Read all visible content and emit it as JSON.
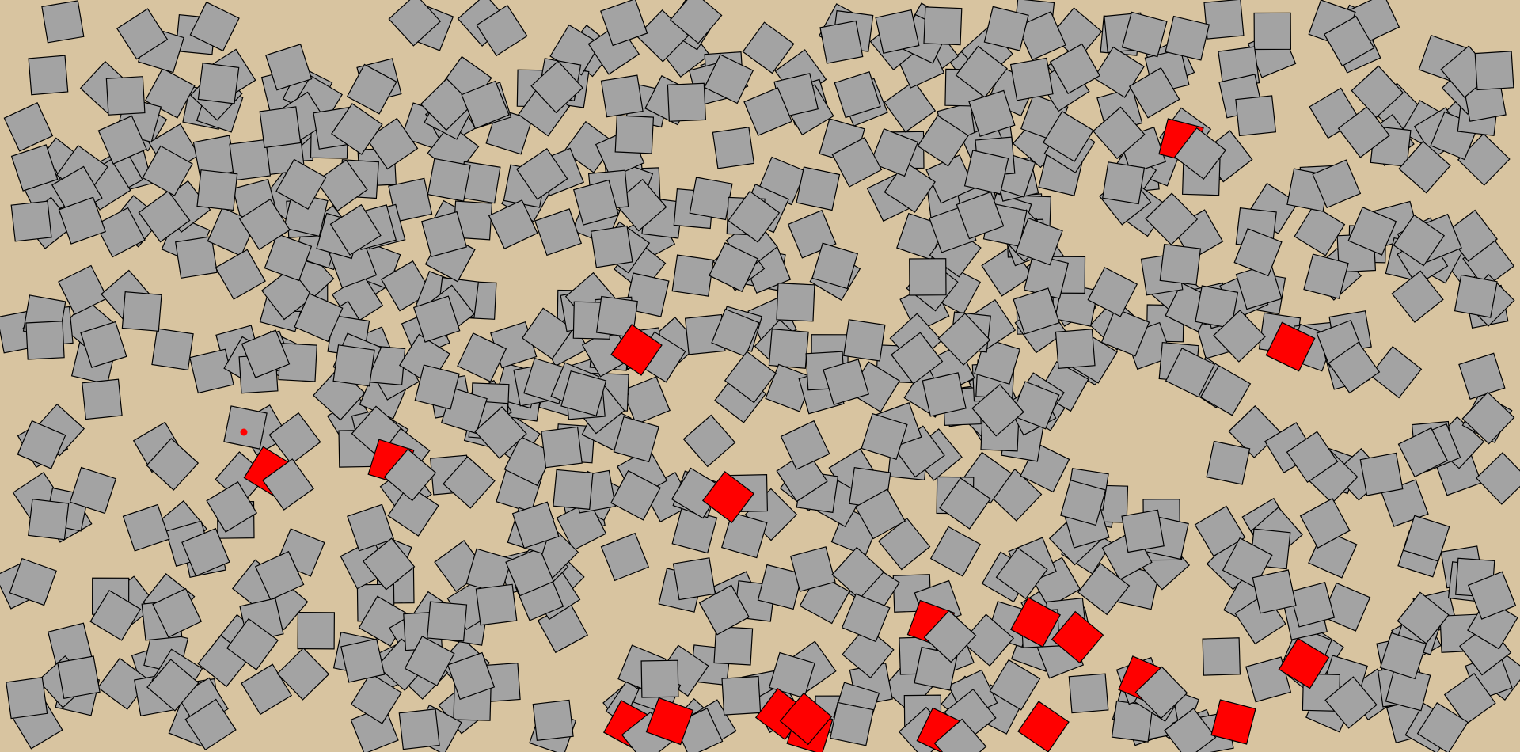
{
  "game": {
    "title": "",
    "colors": {
      "background": "#d8c4a0",
      "tile_fill": "#a3a3a3",
      "target_fill": "#ff0000",
      "tile_stroke": "#000000",
      "marker": "#ff0000"
    },
    "tiles": {
      "gray_count": 780,
      "red_count": 19,
      "shape": "square",
      "outline": true
    },
    "marker": {
      "shape": "dot",
      "on_tile": "gray"
    }
  }
}
